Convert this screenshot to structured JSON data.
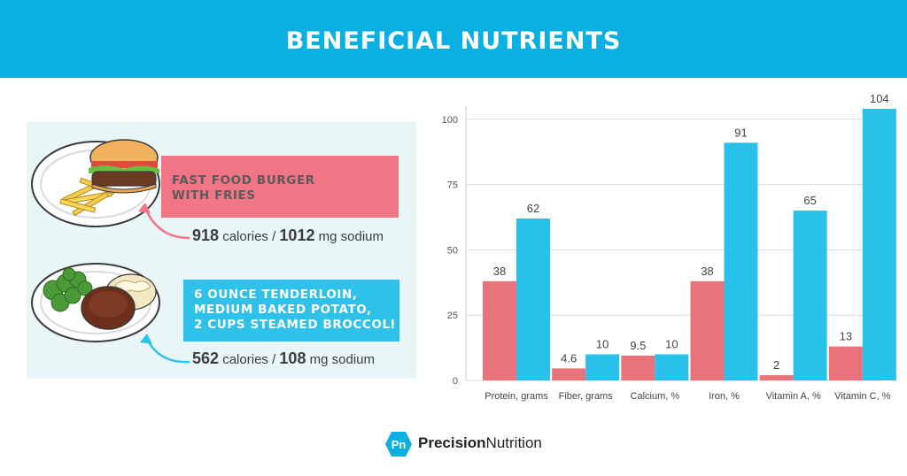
{
  "header": {
    "title": "BENEFICIAL NUTRIENTS"
  },
  "meals": [
    {
      "lines": [
        "FAST FOOD BURGER",
        "WITH FRIES"
      ],
      "calories": "918",
      "calories_unit": "calories /",
      "sodium": "1012",
      "sodium_unit": "mg sodium"
    },
    {
      "lines": [
        "6 OUNCE TENDERLOIN,",
        "MEDIUM BAKED POTATO,",
        "2 CUPS STEAMED BROCCOLI"
      ],
      "calories": "562",
      "calories_unit": "calories /",
      "sodium": "108",
      "sodium_unit": "mg sodium"
    }
  ],
  "colors": {
    "header": "#0ab0e2",
    "red": "#e8737a",
    "blue": "#29c1ea",
    "panel": "#e8f6f8"
  },
  "chart_data": {
    "type": "bar",
    "categories": [
      "Protein, grams",
      "Fiber, grams",
      "Calcium, %",
      "Iron, %",
      "Vitamin A, %",
      "Vitamin C, %"
    ],
    "series": [
      {
        "values": [
          38,
          4.6,
          9.5,
          38,
          2,
          13
        ]
      },
      {
        "values": [
          62,
          10,
          10,
          91,
          65,
          104
        ]
      }
    ],
    "data_labels": [
      [
        "38",
        "4.6",
        "9.5",
        "38",
        "2",
        "13"
      ],
      [
        "62",
        "10",
        "10",
        "91",
        "65",
        "104"
      ]
    ],
    "yticks": [
      "0",
      "25",
      "50",
      "75",
      "100"
    ],
    "ylim": [
      0,
      105
    ],
    "grid": true
  },
  "footer": {
    "brand_bold": "Precision",
    "brand_rest": "Nutrition",
    "logo_text": "Pn"
  }
}
